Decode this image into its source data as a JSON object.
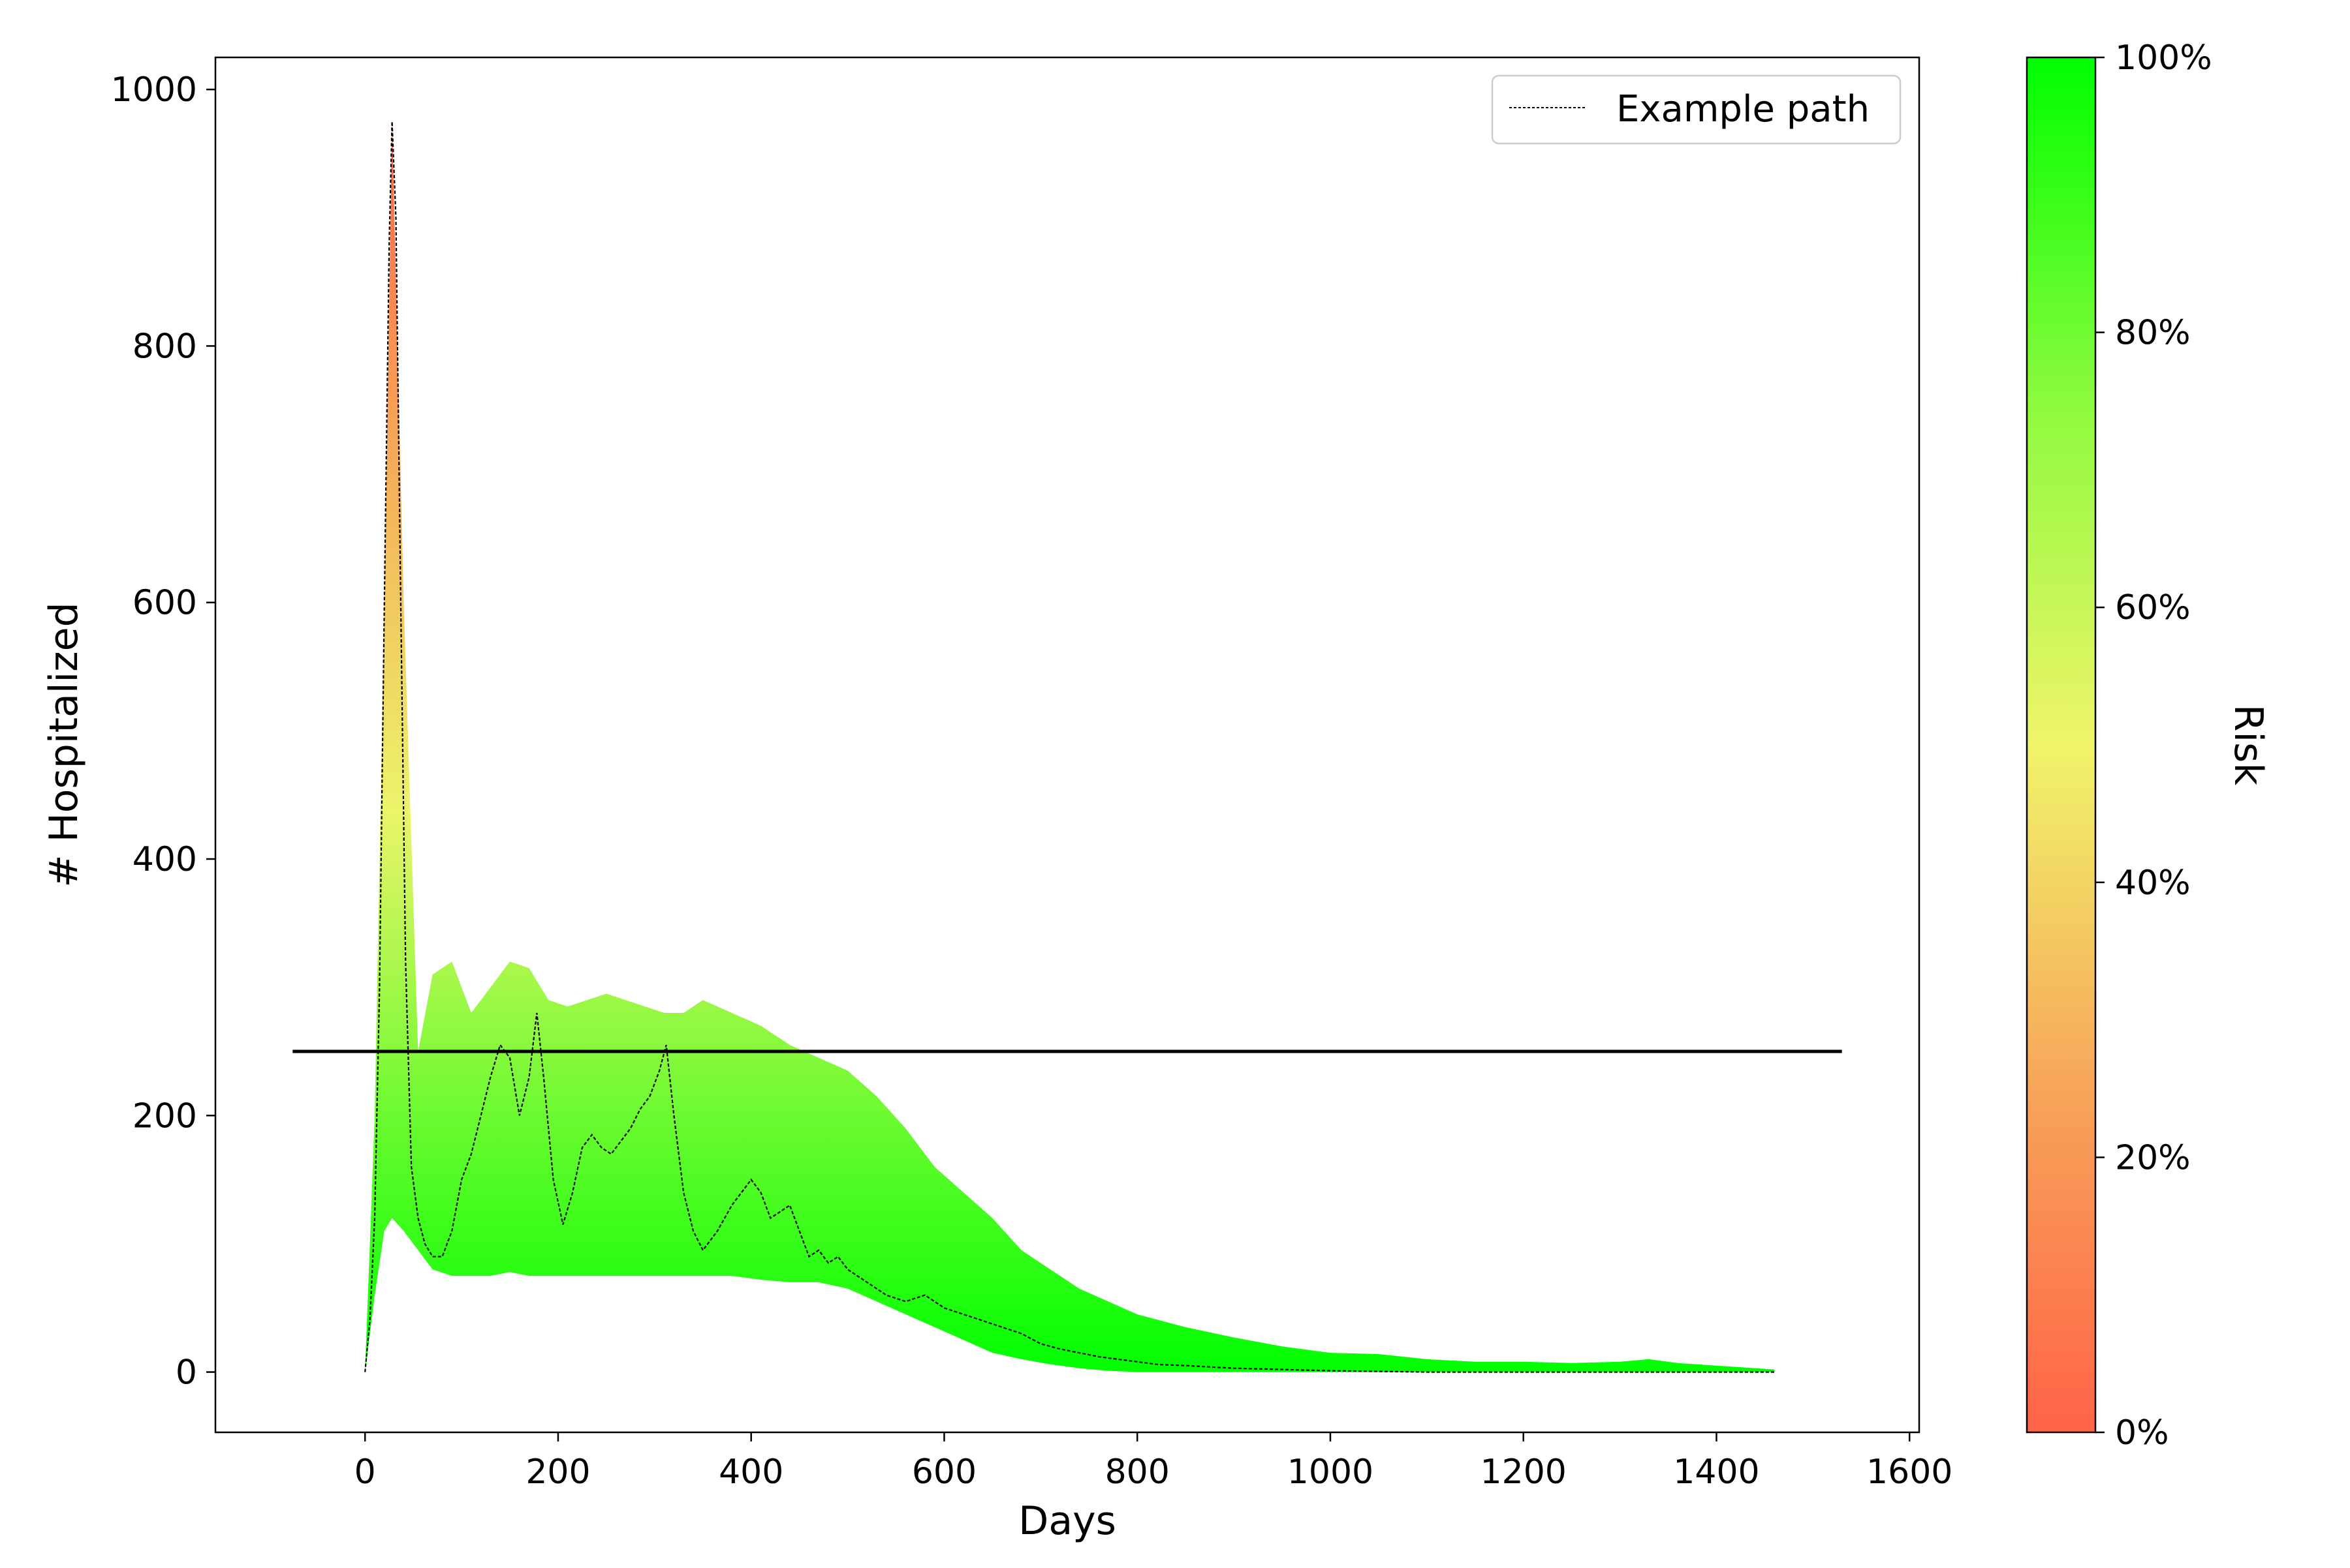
{
  "chart_data": {
    "type": "area",
    "xlabel": "Days",
    "ylabel": "# Hospitalized",
    "xlim": [
      -155,
      1610
    ],
    "ylim": [
      -47,
      1025
    ],
    "xticks": [
      0,
      200,
      400,
      600,
      800,
      1000,
      1200,
      1400,
      1600
    ],
    "yticks": [
      0,
      200,
      400,
      600,
      800,
      1000
    ],
    "grid": false,
    "legend": {
      "position": "top-right",
      "entries": [
        "Example path"
      ]
    },
    "threshold": {
      "y": 250,
      "x_range": [
        -75,
        1530
      ]
    },
    "colorbar": {
      "label": "Risk",
      "ticks": [
        "0%",
        "20%",
        "40%",
        "60%",
        "80%",
        "100%"
      ],
      "colors": [
        "#ff6347",
        "#f7a55a",
        "#f0e868",
        "#a8fa48",
        "#45fb2c",
        "#00ff00"
      ]
    },
    "band": {
      "x": [
        0,
        10,
        20,
        28,
        40,
        55,
        70,
        90,
        110,
        130,
        150,
        170,
        190,
        210,
        230,
        250,
        270,
        290,
        310,
        330,
        350,
        380,
        410,
        440,
        470,
        500,
        530,
        560,
        590,
        620,
        650,
        680,
        710,
        740,
        770,
        800,
        850,
        900,
        950,
        1000,
        1050,
        1100,
        1150,
        1200,
        1250,
        1300,
        1330,
        1360,
        1400,
        1460
      ],
      "upper": [
        0,
        200,
        600,
        975,
        600,
        250,
        310,
        320,
        280,
        300,
        320,
        315,
        290,
        285,
        290,
        295,
        290,
        285,
        280,
        280,
        290,
        280,
        270,
        255,
        245,
        235,
        215,
        190,
        160,
        140,
        120,
        95,
        80,
        65,
        55,
        45,
        35,
        27,
        20,
        15,
        14,
        10,
        8,
        8,
        7,
        8,
        10,
        7,
        5,
        2
      ],
      "middle": [
        0,
        100,
        160,
        200,
        210,
        195,
        200,
        190,
        185,
        185,
        180,
        180,
        175,
        175,
        175,
        175,
        170,
        170,
        170,
        170,
        170,
        170,
        168,
        160,
        150,
        135,
        120,
        105,
        90,
        75,
        60,
        48,
        38,
        30,
        24,
        18,
        12,
        8,
        6,
        4,
        3,
        3,
        2,
        2,
        2,
        2,
        2,
        2,
        1,
        1
      ],
      "lower": [
        0,
        60,
        110,
        120,
        110,
        95,
        80,
        75,
        75,
        75,
        78,
        75,
        75,
        75,
        75,
        75,
        75,
        75,
        75,
        75,
        75,
        75,
        72,
        70,
        70,
        65,
        55,
        45,
        35,
        25,
        15,
        10,
        6,
        3,
        1,
        0,
        0,
        0,
        0,
        0,
        0,
        0,
        0,
        0,
        0,
        0,
        0,
        0,
        0,
        0
      ]
    },
    "series": [
      {
        "name": "Example path",
        "x": [
          0,
          5,
          10,
          15,
          20,
          25,
          28,
          32,
          37,
          42,
          48,
          55,
          62,
          70,
          80,
          90,
          100,
          110,
          120,
          130,
          140,
          150,
          160,
          170,
          178,
          185,
          195,
          205,
          215,
          225,
          235,
          245,
          255,
          265,
          275,
          285,
          295,
          305,
          312,
          320,
          330,
          340,
          350,
          365,
          380,
          390,
          400,
          410,
          420,
          430,
          440,
          450,
          460,
          470,
          480,
          490,
          500,
          520,
          540,
          560,
          580,
          600,
          620,
          640,
          660,
          680,
          700,
          720,
          740,
          760,
          780,
          800,
          820,
          850,
          900,
          950,
          1000,
          1100,
          1200,
          1300,
          1400,
          1460
        ],
        "y": [
          0,
          40,
          120,
          300,
          600,
          880,
          975,
          900,
          600,
          320,
          160,
          120,
          100,
          90,
          90,
          110,
          150,
          170,
          200,
          230,
          255,
          245,
          200,
          230,
          280,
          230,
          150,
          115,
          140,
          175,
          185,
          175,
          170,
          180,
          190,
          205,
          215,
          235,
          255,
          200,
          140,
          110,
          95,
          110,
          130,
          140,
          150,
          140,
          120,
          125,
          130,
          110,
          90,
          95,
          85,
          90,
          80,
          70,
          60,
          55,
          60,
          50,
          45,
          40,
          35,
          30,
          22,
          18,
          15,
          12,
          10,
          8,
          6,
          5,
          3,
          2,
          1,
          0,
          0,
          0,
          0,
          0
        ]
      }
    ]
  }
}
